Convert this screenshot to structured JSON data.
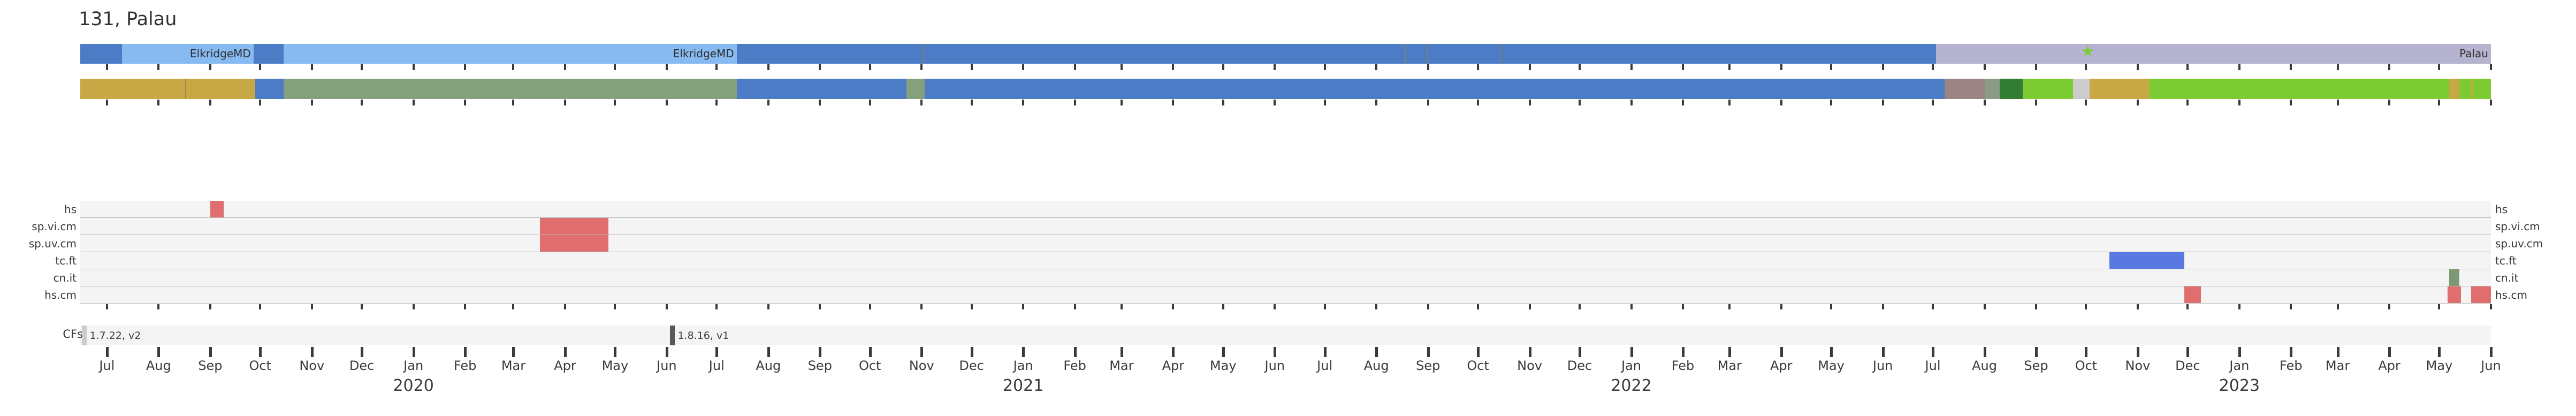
{
  "chart_data": {
    "type": "timeline",
    "title": "131, Palau",
    "colors": {
      "medium_blue": "#4c7cc6",
      "light_blue": "#88baf2",
      "lavender": "#b5b3cf",
      "gold": "#c8a845",
      "sage": "#84a07c",
      "mauve": "#9b8486",
      "gray_sage": "#8b9c86",
      "dark_green": "#327d33",
      "bright_green": "#7ccb33",
      "light_gray": "#cccccc",
      "red": "#e06e6e",
      "mark_blue": "#5a78e2",
      "mark_green": "#7d9973",
      "band": "#f4f4f4",
      "band_line": "#b9b9b9",
      "tick": "#3a3a3a",
      "text": "#3a3a3a",
      "marker_light": "#cccccc",
      "marker_dark": "#595959",
      "divider": "#8d7f57"
    },
    "axis": {
      "domain_start": "2019-06-15",
      "domain_end": "2023-06-01",
      "month_labels": [
        "Jul",
        "Aug",
        "Sep",
        "Oct",
        "Nov",
        "Dec",
        "Jan",
        "Feb",
        "Mar",
        "Apr",
        "May",
        "Jun",
        "Jul",
        "Aug",
        "Sep",
        "Oct",
        "Nov",
        "Dec",
        "Jan",
        "Feb",
        "Mar",
        "Apr",
        "May",
        "Jun",
        "Jul",
        "Aug",
        "Sep",
        "Oct",
        "Nov",
        "Dec",
        "Jan",
        "Feb",
        "Mar",
        "Apr",
        "May",
        "Jun",
        "Jul",
        "Aug",
        "Sep",
        "Oct",
        "Nov",
        "Dec",
        "Jan",
        "Feb",
        "Mar",
        "Apr",
        "May",
        "Jun"
      ],
      "year_labels": [
        {
          "text": "2020",
          "tick_index": 6
        },
        {
          "text": "2021",
          "tick_index": 18
        },
        {
          "text": "2022",
          "tick_index": 30
        },
        {
          "text": "2023",
          "tick_index": 42
        }
      ]
    },
    "top_bars": [
      {
        "name": "site-bar",
        "segments": [
          {
            "start": "2019-06-15",
            "end": "2019-07-10",
            "color": "medium_blue"
          },
          {
            "start": "2019-07-10",
            "end": "2019-09-27",
            "color": "light_blue",
            "label": "ElkridgeMD"
          },
          {
            "start": "2019-09-27",
            "end": "2019-10-15",
            "color": "medium_blue"
          },
          {
            "start": "2019-10-15",
            "end": "2020-07-13",
            "color": "light_blue",
            "label": "ElkridgeMD"
          },
          {
            "start": "2020-07-13",
            "end": "2020-11-02",
            "color": "medium_blue"
          },
          {
            "start": "2020-11-02",
            "end": "2021-08-18",
            "color": "medium_blue",
            "divider": true
          },
          {
            "start": "2021-08-18",
            "end": "2021-08-31",
            "color": "medium_blue",
            "divider": true
          },
          {
            "start": "2021-08-31",
            "end": "2021-10-14",
            "color": "medium_blue",
            "divider": true
          },
          {
            "start": "2021-10-14",
            "end": "2022-07-03",
            "color": "medium_blue",
            "divider": true
          },
          {
            "start": "2022-07-03",
            "end": "2023-06-01",
            "color": "lavender",
            "label": "Palau"
          }
        ],
        "markers": [
          {
            "date": "2022-10-02",
            "icon": "star",
            "glyph": "★",
            "color": "bright_green"
          }
        ]
      },
      {
        "name": "status-bar",
        "segments": [
          {
            "start": "2019-06-15",
            "end": "2019-08-17",
            "color": "gold"
          },
          {
            "start": "2019-08-17",
            "end": "2019-09-28",
            "color": "gold",
            "divider": true
          },
          {
            "start": "2019-09-28",
            "end": "2019-10-15",
            "color": "medium_blue"
          },
          {
            "start": "2019-10-15",
            "end": "2020-07-13",
            "color": "sage"
          },
          {
            "start": "2020-07-13",
            "end": "2020-10-23",
            "color": "medium_blue"
          },
          {
            "start": "2020-10-23",
            "end": "2020-11-03",
            "color": "sage"
          },
          {
            "start": "2020-11-03",
            "end": "2022-07-08",
            "color": "medium_blue"
          },
          {
            "start": "2022-07-08",
            "end": "2022-08-01",
            "color": "mauve"
          },
          {
            "start": "2022-08-01",
            "end": "2022-08-10",
            "color": "gray_sage"
          },
          {
            "start": "2022-08-10",
            "end": "2022-08-24",
            "color": "dark_green"
          },
          {
            "start": "2022-08-24",
            "end": "2022-09-23",
            "color": "bright_green"
          },
          {
            "start": "2022-09-23",
            "end": "2022-10-03",
            "color": "light_gray"
          },
          {
            "start": "2022-10-03",
            "end": "2022-11-08",
            "color": "gold"
          },
          {
            "start": "2022-11-08",
            "end": "2023-05-07",
            "color": "bright_green"
          },
          {
            "start": "2023-05-07",
            "end": "2023-05-13",
            "color": "gold"
          },
          {
            "start": "2023-05-13",
            "end": "2023-05-20",
            "color": "bright_green"
          },
          {
            "start": "2023-05-20",
            "end": "2023-05-21",
            "color": "gold"
          },
          {
            "start": "2023-05-21",
            "end": "2023-06-01",
            "color": "bright_green"
          }
        ],
        "markers": []
      }
    ],
    "annotation_rows": [
      {
        "label": "hs",
        "marks": [
          {
            "start": "2019-09-01",
            "end": "2019-09-09",
            "color": "red"
          }
        ]
      },
      {
        "label": "sp.vi.cm",
        "marks": [
          {
            "start": "2020-03-17",
            "end": "2020-04-27",
            "color": "red"
          }
        ]
      },
      {
        "label": "sp.uv.cm",
        "marks": [
          {
            "start": "2020-03-17",
            "end": "2020-04-27",
            "color": "red"
          }
        ]
      },
      {
        "label": "tc.ft",
        "marks": [
          {
            "start": "2022-10-15",
            "end": "2022-11-29",
            "color": "mark_blue"
          }
        ]
      },
      {
        "label": "cn.it",
        "marks": [
          {
            "start": "2023-05-07",
            "end": "2023-05-13",
            "color": "mark_green"
          }
        ]
      },
      {
        "label": "hs.cm",
        "marks": [
          {
            "start": "2022-11-29",
            "end": "2022-12-09",
            "color": "red"
          },
          {
            "start": "2023-05-06",
            "end": "2023-05-14",
            "color": "red"
          },
          {
            "start": "2023-05-20",
            "end": "2023-06-01",
            "color": "red"
          }
        ]
      }
    ],
    "cfs": {
      "label": "CFs",
      "markers": [
        {
          "date": "2019-06-16",
          "end": "2019-06-19",
          "label": "1.7.22, v2",
          "style": "light"
        },
        {
          "date": "2020-06-03",
          "end": "2020-06-06",
          "label": "1.8.16, v1",
          "style": "dark"
        }
      ]
    }
  }
}
